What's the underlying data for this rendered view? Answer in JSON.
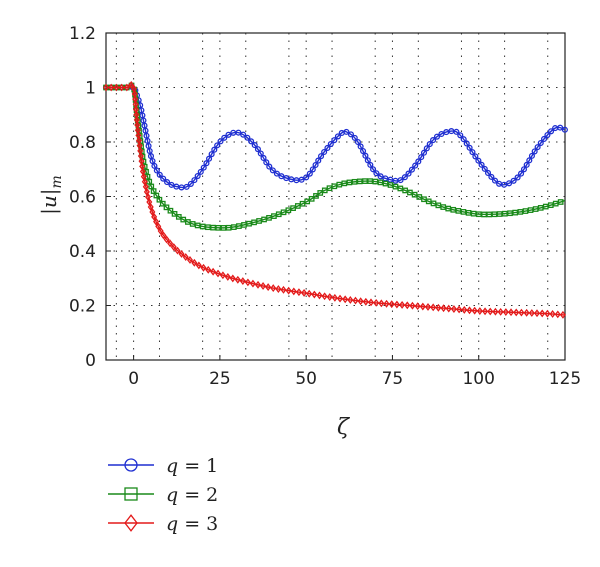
{
  "chart_data": {
    "type": "line",
    "title": "",
    "xlabel": "ζ",
    "ylabel_main": "|u|",
    "ylabel_sub": "m",
    "xlim": [
      -8,
      125
    ],
    "ylim": [
      0,
      1.2
    ],
    "xticks": [
      0,
      25,
      50,
      75,
      100,
      125
    ],
    "yticks": [
      0,
      0.2,
      0.4,
      0.6,
      0.8,
      1,
      1.2
    ],
    "ytick_labels": [
      "0",
      "0.2",
      "0.4",
      "0.6",
      "0.8",
      "1",
      "1.2"
    ],
    "grid": true,
    "legend_position": "below",
    "series": [
      {
        "name": "q = 1",
        "var": "q",
        "value": "1",
        "color": "#1f2fd1",
        "marker": "circle",
        "x": [
          -8,
          -6,
          -4,
          -2,
          0,
          1,
          2,
          3,
          5,
          7,
          10,
          13,
          16,
          20,
          25,
          30,
          35,
          40,
          45,
          50,
          55,
          60,
          62,
          65,
          70,
          75,
          78,
          82,
          87,
          92,
          95,
          100,
          105,
          108,
          112,
          117,
          122,
          125
        ],
        "y": [
          1.0,
          1.0,
          1.0,
          1.0,
          1.0,
          0.97,
          0.93,
          0.87,
          0.75,
          0.69,
          0.65,
          0.635,
          0.64,
          0.7,
          0.8,
          0.835,
          0.79,
          0.7,
          0.665,
          0.67,
          0.76,
          0.83,
          0.835,
          0.8,
          0.69,
          0.66,
          0.665,
          0.72,
          0.81,
          0.84,
          0.82,
          0.73,
          0.655,
          0.645,
          0.68,
          0.78,
          0.85,
          0.845
        ]
      },
      {
        "name": "q = 2",
        "var": "q",
        "value": "2",
        "color": "#1a8a1a",
        "marker": "square",
        "x": [
          -8,
          -6,
          -4,
          -2,
          0,
          1,
          2,
          3,
          5,
          8,
          12,
          16,
          20,
          25,
          30,
          40,
          50,
          55,
          60,
          65,
          70,
          75,
          80,
          85,
          90,
          95,
          100,
          105,
          110,
          115,
          120,
          125
        ],
        "y": [
          1.0,
          1.0,
          1.0,
          1.0,
          1.0,
          0.9,
          0.8,
          0.72,
          0.64,
          0.58,
          0.535,
          0.505,
          0.49,
          0.485,
          0.49,
          0.525,
          0.58,
          0.62,
          0.645,
          0.655,
          0.655,
          0.64,
          0.615,
          0.585,
          0.56,
          0.545,
          0.535,
          0.535,
          0.54,
          0.55,
          0.565,
          0.585
        ]
      },
      {
        "name": "q = 3",
        "var": "q",
        "value": "3",
        "color": "#e31a1a",
        "marker": "diamond",
        "x": [
          -8,
          -6,
          -4,
          -2,
          0,
          1,
          2,
          3,
          5,
          8,
          12,
          16,
          20,
          25,
          30,
          40,
          50,
          60,
          70,
          80,
          90,
          100,
          110,
          120,
          125
        ],
        "y": [
          1.0,
          1.0,
          1.0,
          1.0,
          1.0,
          0.87,
          0.76,
          0.67,
          0.56,
          0.47,
          0.41,
          0.37,
          0.34,
          0.315,
          0.295,
          0.265,
          0.245,
          0.225,
          0.21,
          0.2,
          0.19,
          0.18,
          0.175,
          0.17,
          0.165
        ]
      }
    ]
  }
}
